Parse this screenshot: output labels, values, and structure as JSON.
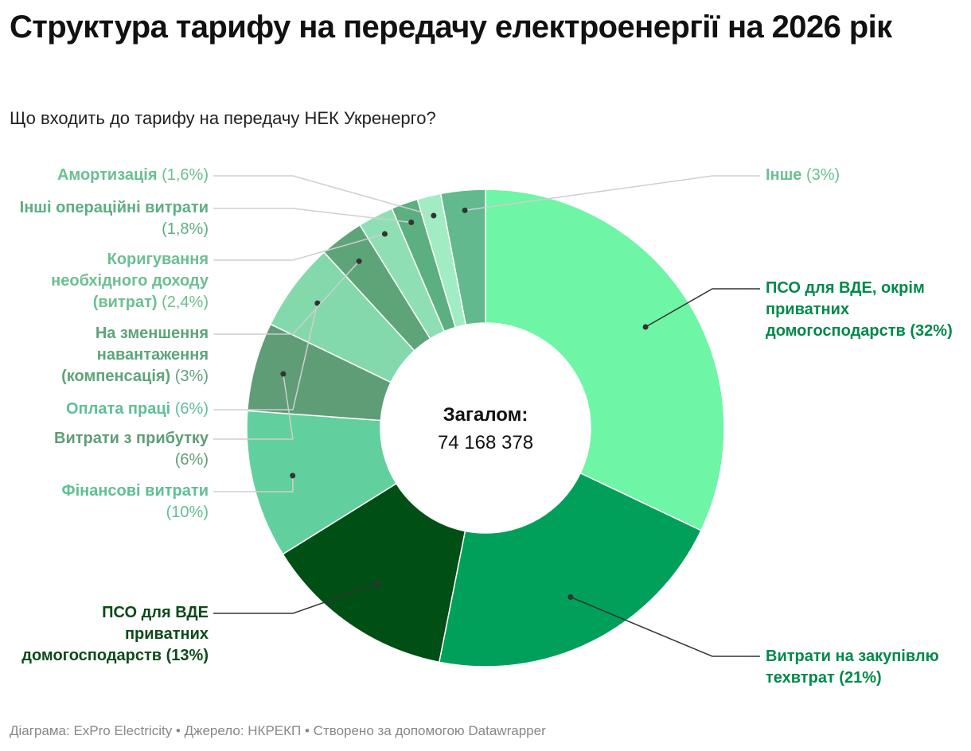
{
  "title": "Структура тарифу на передачу електроенергії на 2026 рік",
  "subtitle": "Що входить до тарифу на передачу НЕК Укренерго?",
  "footer": "Діаграма: ExPro Electricity • Джерело: НКРЕКП • Створено за допомогою Datawrapper",
  "center": {
    "label": "Загалом:",
    "value": "74 168 378"
  },
  "chart_data": {
    "type": "pie",
    "donut": true,
    "unit": "%",
    "total": "74 168 378",
    "categories": [
      "ПСО для ВДЕ, окрім приватних домогосподарств",
      "Витрати на закупівлю техвтрат",
      "ПСО для ВДЕ приватних домогосподарств",
      "Фінансові витрати",
      "Витрати з прибутку",
      "Оплата праці",
      "На зменшення навантаження (компенсація)",
      "Коригування необхідного доходу (витрат)",
      "Інші операційні витрати",
      "Амортизація",
      "Інше"
    ],
    "values": [
      32,
      21,
      13,
      10,
      6,
      6,
      3,
      2.4,
      1.8,
      1.6,
      3
    ],
    "colors": [
      "#6ef5a5",
      "#00a05a",
      "#004f14",
      "#62cf9e",
      "#5f9d77",
      "#83d9ab",
      "#5ea479",
      "#8ee0b4",
      "#5caf80",
      "#a1ecc2",
      "#62b98e"
    ],
    "value_labels": [
      "(32%)",
      "(21%)",
      "(13%)",
      "(10%)",
      "(6%)",
      "(6%)",
      "(3%)",
      "(2,4%)",
      "(1,8%)",
      "(1,6%)",
      "(3%)"
    ]
  }
}
